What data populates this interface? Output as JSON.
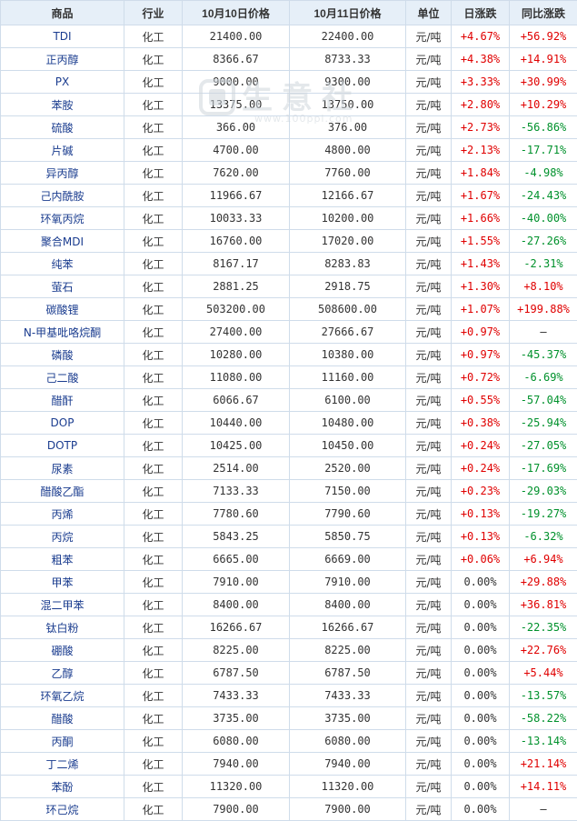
{
  "headers": {
    "name": "商品",
    "industry": "行业",
    "price1": "10月10日价格",
    "price2": "10月11日价格",
    "unit": "单位",
    "daily": "日涨跌",
    "yoy": "同比涨跌"
  },
  "watermark": {
    "text": "生意社",
    "url": "www.100ppi.com"
  },
  "colors": {
    "up": "#e00000",
    "down": "#00912c",
    "header_bg": "#e6eff8",
    "border": "#cfdcea",
    "name_link": "#1a3c8f"
  },
  "rows": [
    {
      "name": "TDI",
      "industry": "化工",
      "p1": "21400.00",
      "p2": "22400.00",
      "unit": "元/吨",
      "daily": "+4.67%",
      "yoy": "+56.92%"
    },
    {
      "name": "正丙醇",
      "industry": "化工",
      "p1": "8366.67",
      "p2": "8733.33",
      "unit": "元/吨",
      "daily": "+4.38%",
      "yoy": "+14.91%"
    },
    {
      "name": "PX",
      "industry": "化工",
      "p1": "9000.00",
      "p2": "9300.00",
      "unit": "元/吨",
      "daily": "+3.33%",
      "yoy": "+30.99%"
    },
    {
      "name": "苯胺",
      "industry": "化工",
      "p1": "13375.00",
      "p2": "13750.00",
      "unit": "元/吨",
      "daily": "+2.80%",
      "yoy": "+10.29%"
    },
    {
      "name": "硫酸",
      "industry": "化工",
      "p1": "366.00",
      "p2": "376.00",
      "unit": "元/吨",
      "daily": "+2.73%",
      "yoy": "-56.86%"
    },
    {
      "name": "片碱",
      "industry": "化工",
      "p1": "4700.00",
      "p2": "4800.00",
      "unit": "元/吨",
      "daily": "+2.13%",
      "yoy": "-17.71%"
    },
    {
      "name": "异丙醇",
      "industry": "化工",
      "p1": "7620.00",
      "p2": "7760.00",
      "unit": "元/吨",
      "daily": "+1.84%",
      "yoy": "-4.98%"
    },
    {
      "name": "己内酰胺",
      "industry": "化工",
      "p1": "11966.67",
      "p2": "12166.67",
      "unit": "元/吨",
      "daily": "+1.67%",
      "yoy": "-24.43%"
    },
    {
      "name": "环氧丙烷",
      "industry": "化工",
      "p1": "10033.33",
      "p2": "10200.00",
      "unit": "元/吨",
      "daily": "+1.66%",
      "yoy": "-40.00%"
    },
    {
      "name": "聚合MDI",
      "industry": "化工",
      "p1": "16760.00",
      "p2": "17020.00",
      "unit": "元/吨",
      "daily": "+1.55%",
      "yoy": "-27.26%"
    },
    {
      "name": "纯苯",
      "industry": "化工",
      "p1": "8167.17",
      "p2": "8283.83",
      "unit": "元/吨",
      "daily": "+1.43%",
      "yoy": "-2.31%"
    },
    {
      "name": "萤石",
      "industry": "化工",
      "p1": "2881.25",
      "p2": "2918.75",
      "unit": "元/吨",
      "daily": "+1.30%",
      "yoy": "+8.10%"
    },
    {
      "name": "碳酸锂",
      "industry": "化工",
      "p1": "503200.00",
      "p2": "508600.00",
      "unit": "元/吨",
      "daily": "+1.07%",
      "yoy": "+199.88%"
    },
    {
      "name": "N-甲基吡咯烷酮",
      "industry": "化工",
      "p1": "27400.00",
      "p2": "27666.67",
      "unit": "元/吨",
      "daily": "+0.97%",
      "yoy": "—"
    },
    {
      "name": "磷酸",
      "industry": "化工",
      "p1": "10280.00",
      "p2": "10380.00",
      "unit": "元/吨",
      "daily": "+0.97%",
      "yoy": "-45.37%"
    },
    {
      "name": "己二酸",
      "industry": "化工",
      "p1": "11080.00",
      "p2": "11160.00",
      "unit": "元/吨",
      "daily": "+0.72%",
      "yoy": "-6.69%"
    },
    {
      "name": "醋酐",
      "industry": "化工",
      "p1": "6066.67",
      "p2": "6100.00",
      "unit": "元/吨",
      "daily": "+0.55%",
      "yoy": "-57.04%"
    },
    {
      "name": "DOP",
      "industry": "化工",
      "p1": "10440.00",
      "p2": "10480.00",
      "unit": "元/吨",
      "daily": "+0.38%",
      "yoy": "-25.94%"
    },
    {
      "name": "DOTP",
      "industry": "化工",
      "p1": "10425.00",
      "p2": "10450.00",
      "unit": "元/吨",
      "daily": "+0.24%",
      "yoy": "-27.05%"
    },
    {
      "name": "尿素",
      "industry": "化工",
      "p1": "2514.00",
      "p2": "2520.00",
      "unit": "元/吨",
      "daily": "+0.24%",
      "yoy": "-17.69%"
    },
    {
      "name": "醋酸乙酯",
      "industry": "化工",
      "p1": "7133.33",
      "p2": "7150.00",
      "unit": "元/吨",
      "daily": "+0.23%",
      "yoy": "-29.03%"
    },
    {
      "name": "丙烯",
      "industry": "化工",
      "p1": "7780.60",
      "p2": "7790.60",
      "unit": "元/吨",
      "daily": "+0.13%",
      "yoy": "-19.27%"
    },
    {
      "name": "丙烷",
      "industry": "化工",
      "p1": "5843.25",
      "p2": "5850.75",
      "unit": "元/吨",
      "daily": "+0.13%",
      "yoy": "-6.32%"
    },
    {
      "name": "粗苯",
      "industry": "化工",
      "p1": "6665.00",
      "p2": "6669.00",
      "unit": "元/吨",
      "daily": "+0.06%",
      "yoy": "+6.94%"
    },
    {
      "name": "甲苯",
      "industry": "化工",
      "p1": "7910.00",
      "p2": "7910.00",
      "unit": "元/吨",
      "daily": "0.00%",
      "yoy": "+29.88%"
    },
    {
      "name": "混二甲苯",
      "industry": "化工",
      "p1": "8400.00",
      "p2": "8400.00",
      "unit": "元/吨",
      "daily": "0.00%",
      "yoy": "+36.81%"
    },
    {
      "name": "钛白粉",
      "industry": "化工",
      "p1": "16266.67",
      "p2": "16266.67",
      "unit": "元/吨",
      "daily": "0.00%",
      "yoy": "-22.35%"
    },
    {
      "name": "硼酸",
      "industry": "化工",
      "p1": "8225.00",
      "p2": "8225.00",
      "unit": "元/吨",
      "daily": "0.00%",
      "yoy": "+22.76%"
    },
    {
      "name": "乙醇",
      "industry": "化工",
      "p1": "6787.50",
      "p2": "6787.50",
      "unit": "元/吨",
      "daily": "0.00%",
      "yoy": "+5.44%"
    },
    {
      "name": "环氧乙烷",
      "industry": "化工",
      "p1": "7433.33",
      "p2": "7433.33",
      "unit": "元/吨",
      "daily": "0.00%",
      "yoy": "-13.57%"
    },
    {
      "name": "醋酸",
      "industry": "化工",
      "p1": "3735.00",
      "p2": "3735.00",
      "unit": "元/吨",
      "daily": "0.00%",
      "yoy": "-58.22%"
    },
    {
      "name": "丙酮",
      "industry": "化工",
      "p1": "6080.00",
      "p2": "6080.00",
      "unit": "元/吨",
      "daily": "0.00%",
      "yoy": "-13.14%"
    },
    {
      "name": "丁二烯",
      "industry": "化工",
      "p1": "7940.00",
      "p2": "7940.00",
      "unit": "元/吨",
      "daily": "0.00%",
      "yoy": "+21.14%"
    },
    {
      "name": "苯酚",
      "industry": "化工",
      "p1": "11320.00",
      "p2": "11320.00",
      "unit": "元/吨",
      "daily": "0.00%",
      "yoy": "+14.11%"
    },
    {
      "name": "环己烷",
      "industry": "化工",
      "p1": "7900.00",
      "p2": "7900.00",
      "unit": "元/吨",
      "daily": "0.00%",
      "yoy": "—"
    }
  ]
}
